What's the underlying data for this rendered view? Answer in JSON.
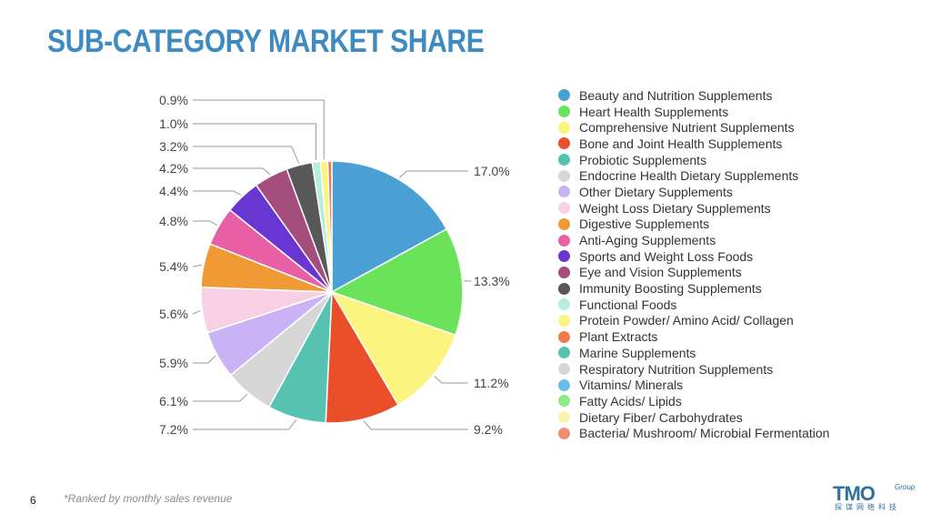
{
  "title": "SUB-CATEGORY MARKET SHARE",
  "page_number": "6",
  "footnote": "*Ranked by monthly sales revenue",
  "logo": {
    "mark": "TMO",
    "group": "Group",
    "chinese": "探谋网络科技"
  },
  "chart_data": {
    "type": "pie",
    "legend_position": "right",
    "slices": [
      {
        "label": "Beauty and Nutrition Supplements",
        "value": 17.0,
        "value_label": "17.0%",
        "color": "#4a9fd4"
      },
      {
        "label": "Heart Health Supplements",
        "value": 13.3,
        "value_label": "13.3%",
        "color": "#6ae35a"
      },
      {
        "label": "Comprehensive Nutrient Supplements",
        "value": 11.2,
        "value_label": "11.2%",
        "color": "#fbf47e"
      },
      {
        "label": "Bone and Joint Health Supplements",
        "value": 9.2,
        "value_label": "9.2%",
        "color": "#e9502a"
      },
      {
        "label": "Probiotic Supplements",
        "value": 7.2,
        "value_label": "7.2%",
        "color": "#55c2b2"
      },
      {
        "label": "Endocrine Health Dietary Supplements",
        "value": 6.1,
        "value_label": "6.1%",
        "color": "#d6d6d6"
      },
      {
        "label": "Other Dietary Supplements",
        "value": 5.9,
        "value_label": "5.9%",
        "color": "#c9b2f5"
      },
      {
        "label": "Weight Loss Dietary Supplements",
        "value": 5.6,
        "value_label": "5.6%",
        "color": "#f8d0e3"
      },
      {
        "label": "Digestive Supplements",
        "value": 5.4,
        "value_label": "5.4%",
        "color": "#ef9a35"
      },
      {
        "label": "Anti-Aging Supplements",
        "value": 4.8,
        "value_label": "4.8%",
        "color": "#e85fa6"
      },
      {
        "label": "Sports and Weight Loss Foods",
        "value": 4.4,
        "value_label": "4.4%",
        "color": "#6a36d3"
      },
      {
        "label": "Eye and Vision Supplements",
        "value": 4.2,
        "value_label": "4.2%",
        "color": "#a54d7d"
      },
      {
        "label": "Immunity Boosting Supplements",
        "value": 3.2,
        "value_label": "3.2%",
        "color": "#585858"
      },
      {
        "label": "Functional Foods",
        "value": 1.0,
        "value_label": "1.0%",
        "color": "#b7ecdf"
      },
      {
        "label": "Protein Powder/ Amino Acid/ Collagen",
        "value": 0.9,
        "value_label": "0.9%",
        "color": "#fbf47e"
      },
      {
        "label": "Plant Extracts",
        "value": 0.5,
        "value_label": "",
        "color": "#f07a4c"
      },
      {
        "label": "Marine Supplements",
        "value": 0.0,
        "value_label": "",
        "color": "#55c2b2"
      },
      {
        "label": "Respiratory Nutrition Supplements",
        "value": 0.0,
        "value_label": "",
        "color": "#d6d6d6"
      },
      {
        "label": "Vitamins/ Minerals",
        "value": 0.0,
        "value_label": "",
        "color": "#6cbce6"
      },
      {
        "label": "Fatty Acids/ Lipids",
        "value": 0.0,
        "value_label": "",
        "color": "#8deb87"
      },
      {
        "label": "Dietary Fiber/ Carbohydrates",
        "value": 0.0,
        "value_label": "",
        "color": "#fcf3b0"
      },
      {
        "label": "Bacteria/ Mushroom/ Microbial Fermentation",
        "value": 0.0,
        "value_label": "",
        "color": "#ee9070"
      }
    ]
  }
}
